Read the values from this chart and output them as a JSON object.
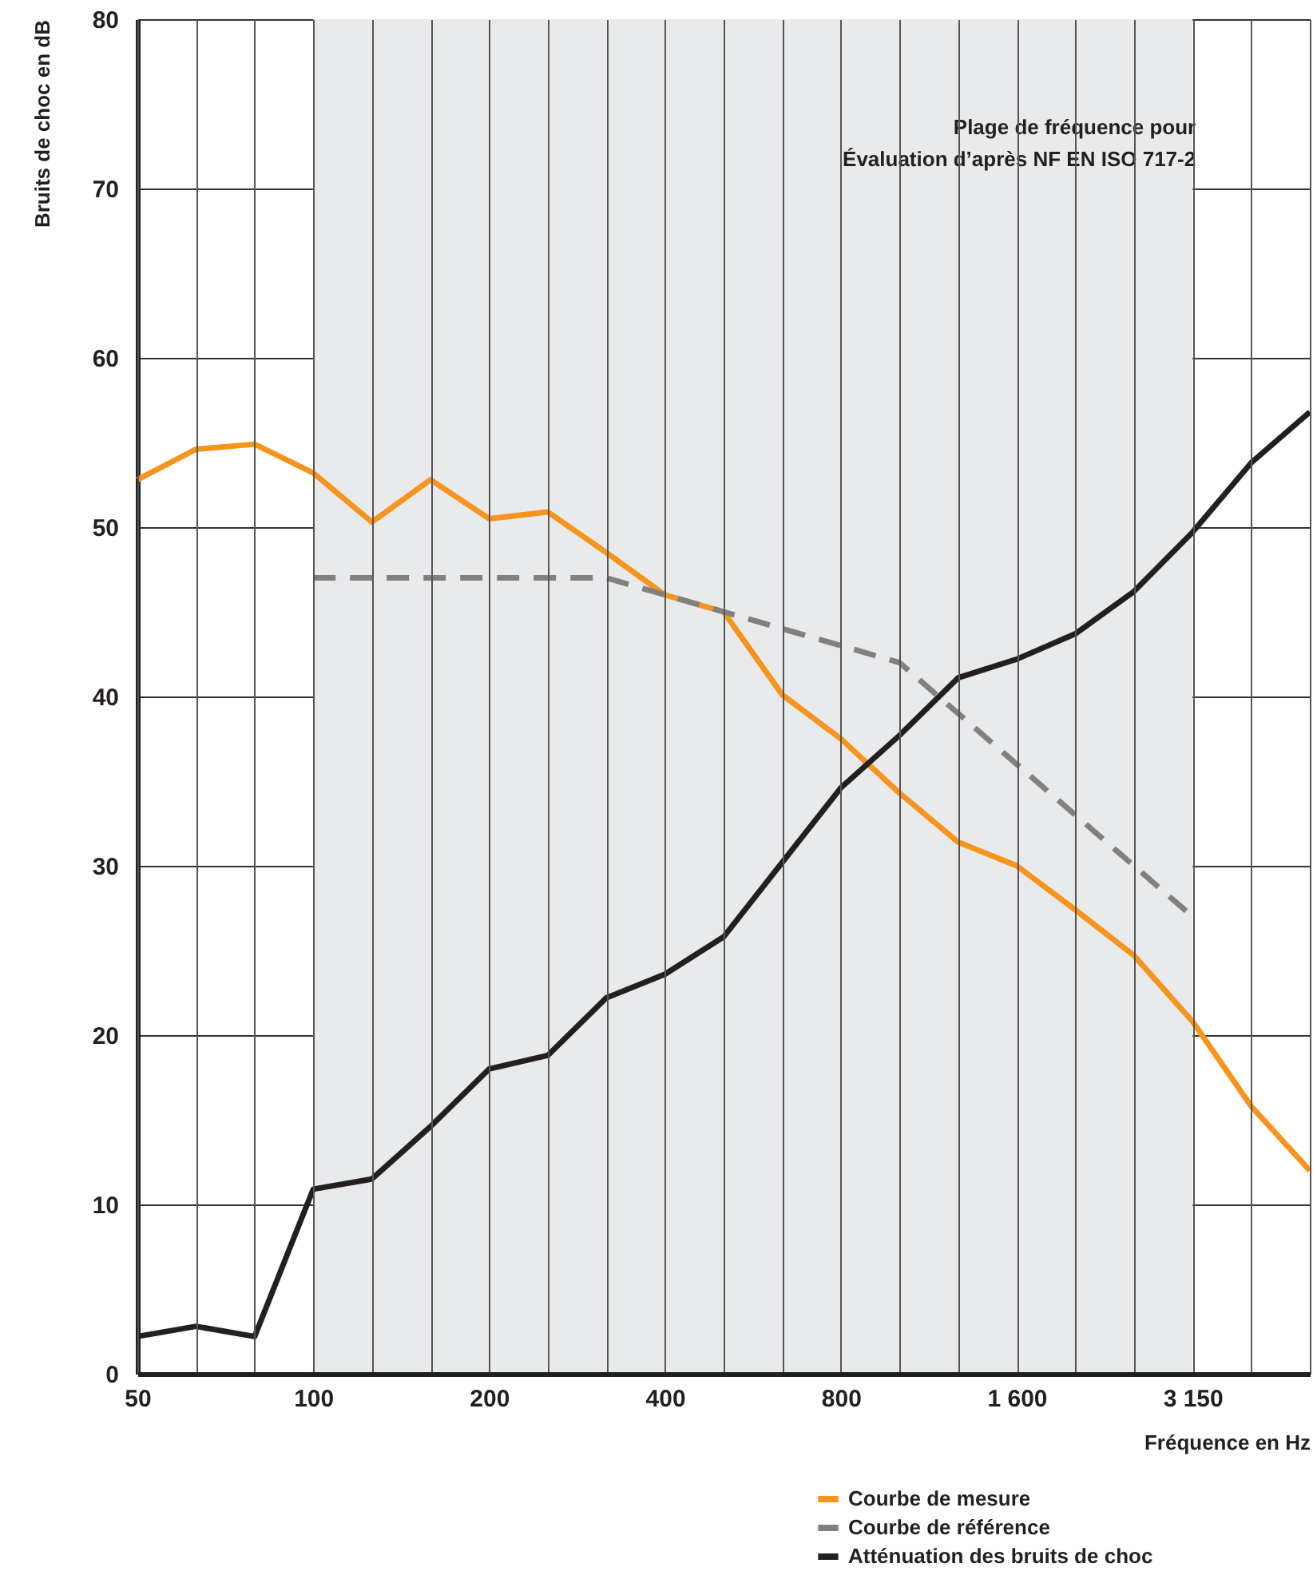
{
  "chart_data": {
    "type": "line",
    "xlabel": "Fréquence en Hz",
    "ylabel": "Bruits de choc en dB",
    "categories": [
      "50",
      null,
      null,
      "100",
      null,
      null,
      "200",
      null,
      null,
      "400",
      null,
      null,
      "800",
      null,
      null,
      "1 600",
      null,
      null,
      "3 150",
      null,
      null
    ],
    "series": [
      {
        "name": "Courbe de mesure",
        "color": "#f7941d",
        "line_style": "solid",
        "values": [
          52.8,
          54.6,
          54.9,
          53.2,
          50.3,
          52.8,
          50.5,
          50.9,
          48.5,
          46.0,
          45.0,
          40.1,
          37.5,
          34.3,
          31.4,
          30.0,
          27.4,
          24.7,
          20.8,
          15.8,
          12.0
        ]
      },
      {
        "name": "Courbe de référence",
        "color": "#808080",
        "line_style": "dashed",
        "values": [
          null,
          null,
          null,
          47,
          47,
          47,
          47,
          47,
          47,
          46,
          45,
          44,
          43,
          42,
          39,
          36,
          33,
          30,
          27,
          null,
          null
        ]
      },
      {
        "name": "Atténuation des bruits de choc",
        "color": "#231f20",
        "line_style": "solid",
        "values": [
          2.2,
          2.8,
          2.2,
          10.9,
          11.5,
          14.6,
          18.0,
          18.8,
          22.2,
          23.6,
          25.8,
          30.2,
          34.6,
          37.7,
          41.1,
          42.2,
          43.7,
          46.2,
          49.7,
          53.8,
          56.8
        ]
      }
    ],
    "ylim": [
      0,
      80
    ],
    "yticks": [
      0,
      10,
      20,
      30,
      40,
      50,
      60,
      70,
      80
    ],
    "bands": [
      {
        "axis": "x",
        "from": "100",
        "to": "3 150",
        "color": "#e9eaec",
        "label": "Plage de fréquence pour\nÉvaluation d’après NF EN ISO 717-2"
      }
    ],
    "grid": true,
    "legend": "bottom right"
  }
}
